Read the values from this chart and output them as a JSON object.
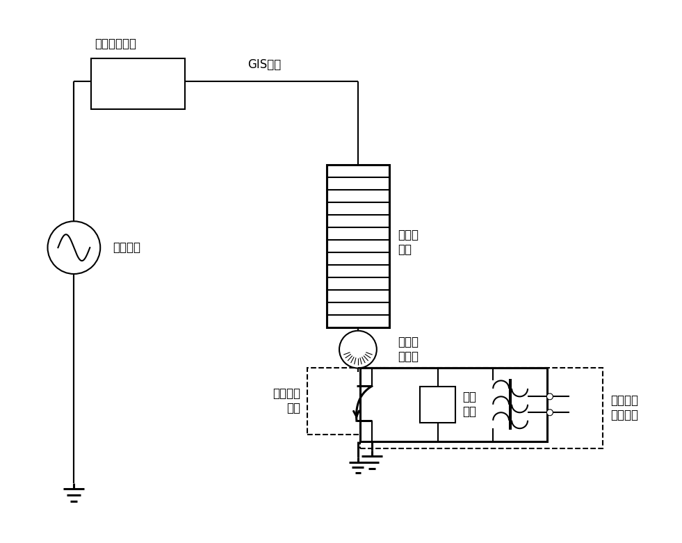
{
  "bg": "#ffffff",
  "lc": "#000000",
  "lw": 1.5,
  "tlw": 2.2,
  "fs": 12,
  "fw": 9.81,
  "fh": 7.81,
  "dpi": 100,
  "labels": {
    "gaoping": "高频滤波单元",
    "gis": "GIS导体",
    "yuanxing": "运行电源",
    "bileiqi_main": "避雷器\n主体",
    "bileiqi_counter": "避雷器\n计数器",
    "switch": "带电检测\n开关",
    "overvoltage": "过压\n保护",
    "sensor": "新型局放\n传感单元"
  }
}
